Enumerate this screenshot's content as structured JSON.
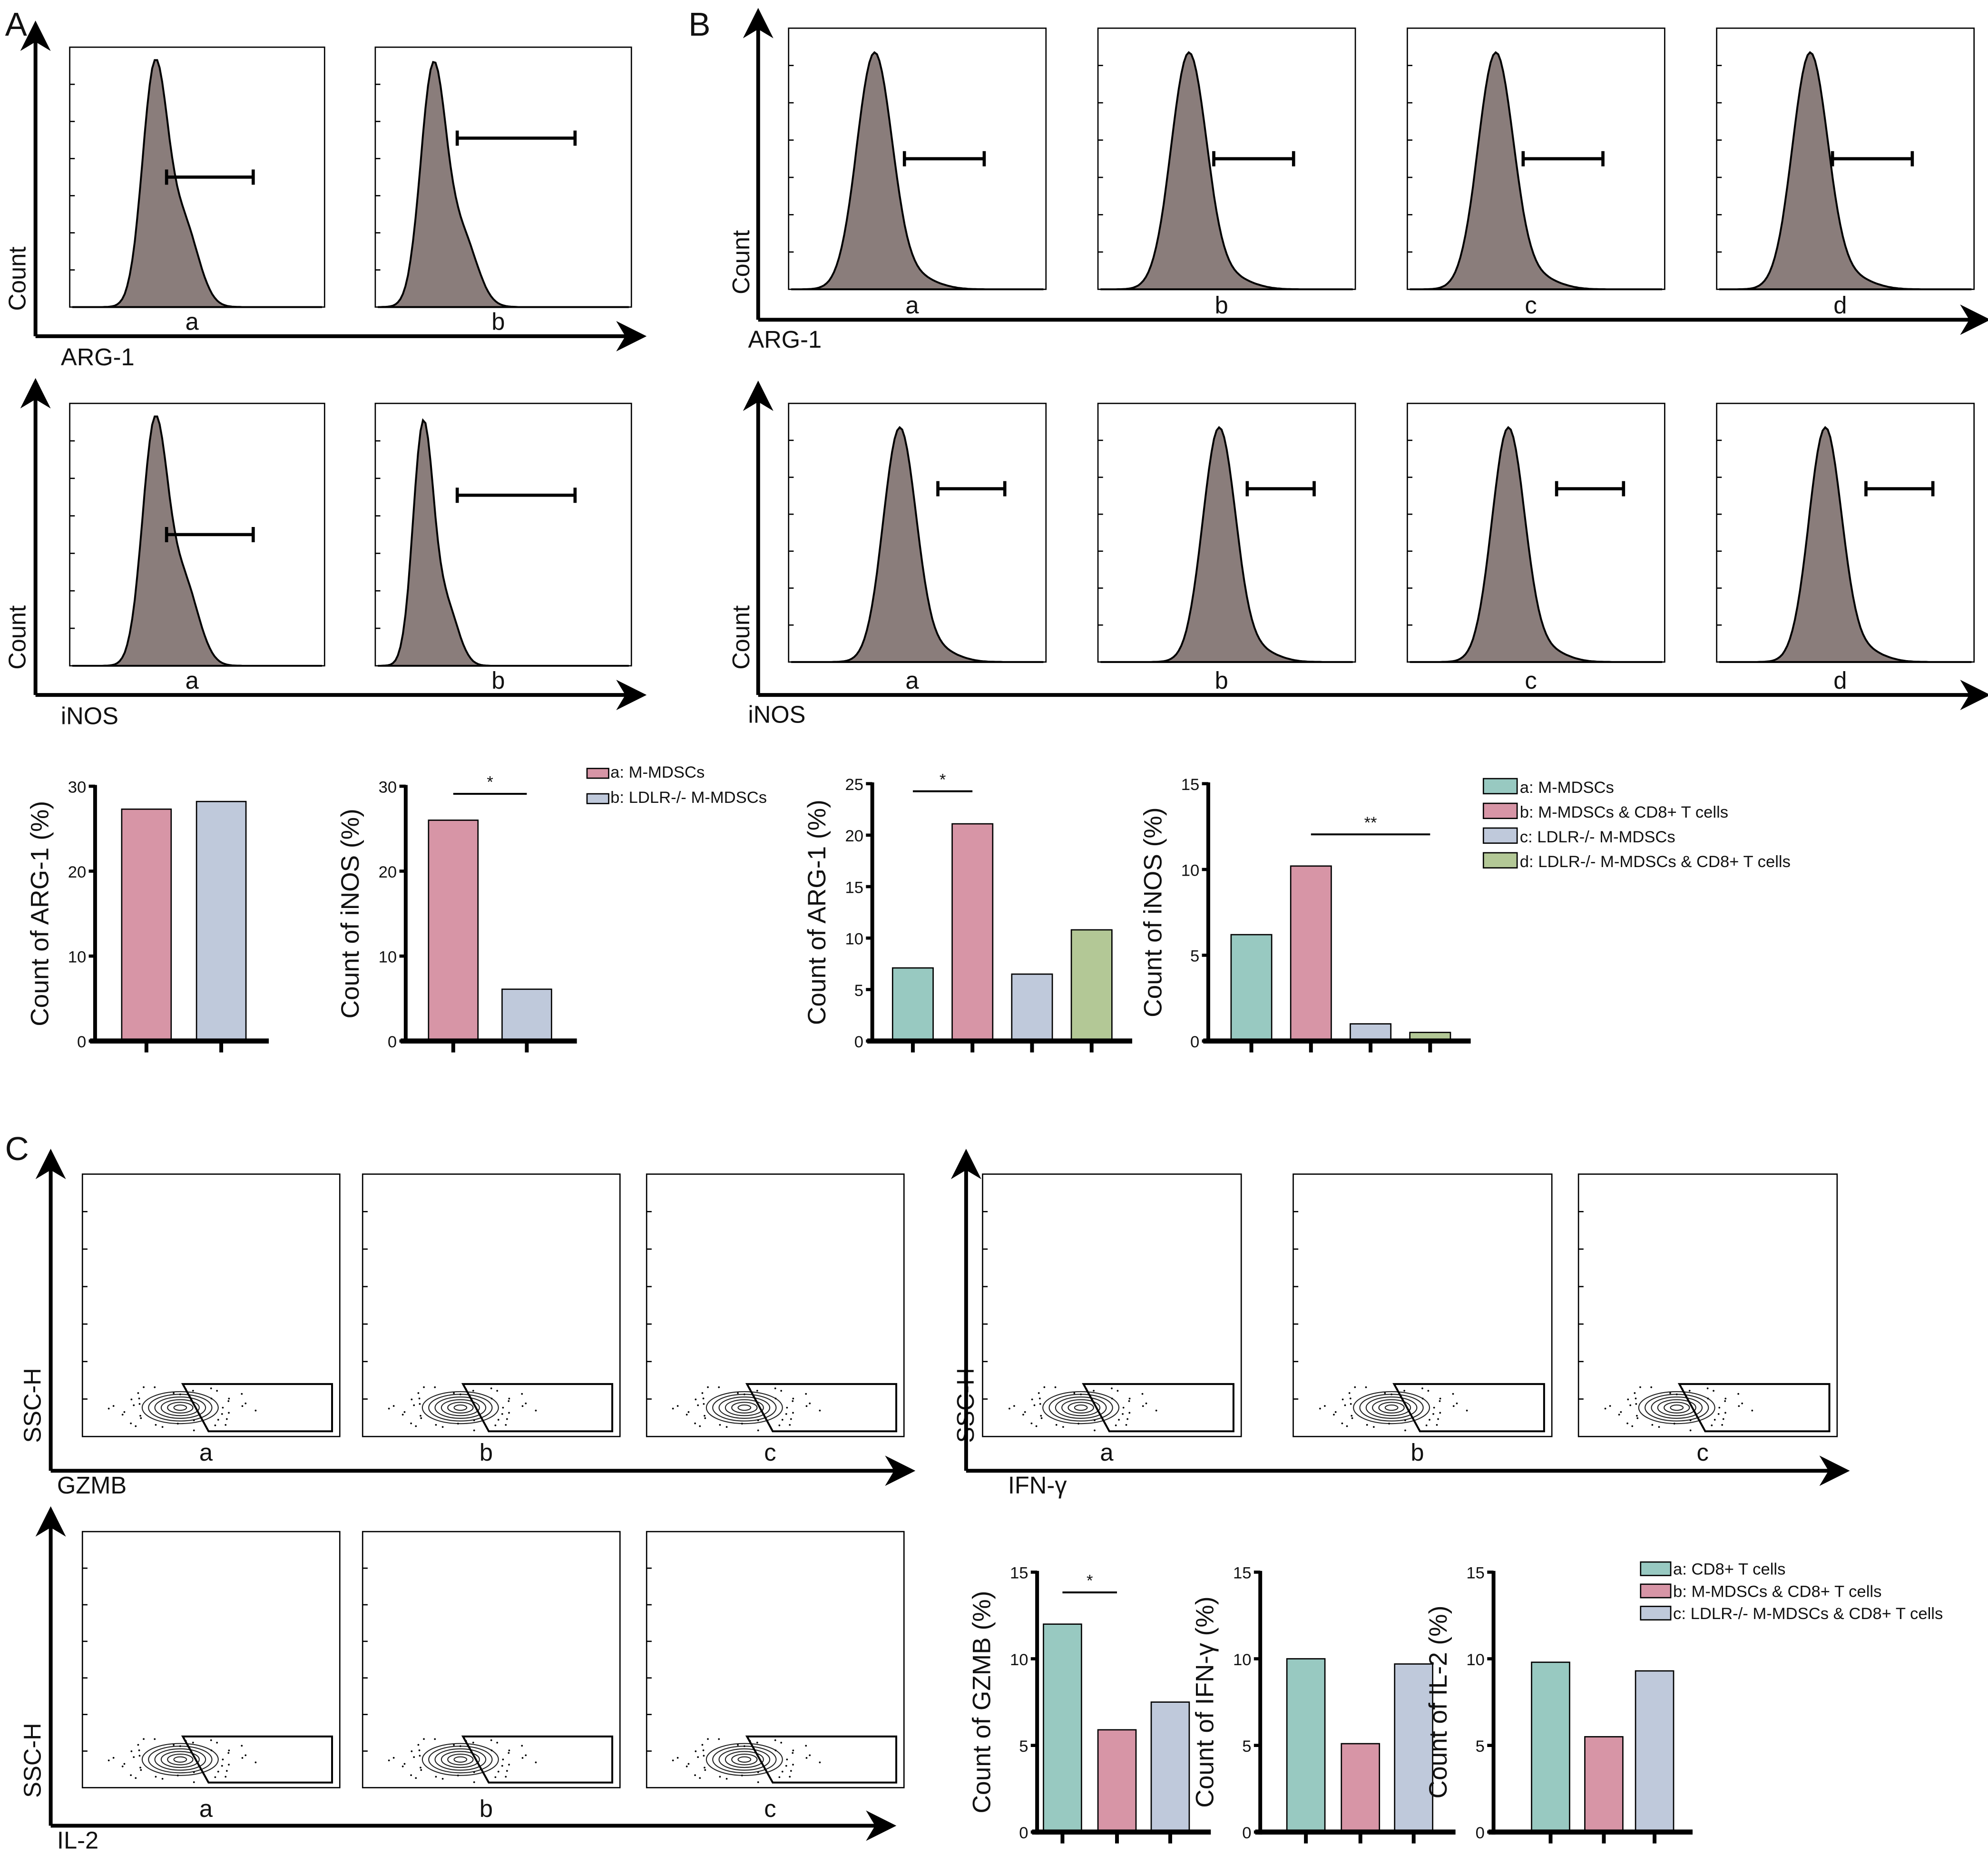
{
  "panels": {
    "A": {
      "letter": "A",
      "y_label": "Count",
      "row1_marker": "ARG-1",
      "row2_marker": "iNOS",
      "sample_labels": [
        "a",
        "b"
      ]
    },
    "B": {
      "letter": "B",
      "y_label": "Count",
      "row1_marker": "ARG-1",
      "row2_marker": "iNOS",
      "sample_labels": [
        "a",
        "b",
        "c",
        "d"
      ]
    },
    "C": {
      "letter": "C",
      "y_label": "SSC-H",
      "gzmb_marker": "GZMB",
      "ifn_marker": "IFN-γ",
      "il2_marker": "IL-2",
      "sample_labels": [
        "a",
        "b",
        "c"
      ]
    }
  },
  "colors": {
    "teal": "#98c9c1",
    "pink": "#d795a6",
    "blue": "#bfc9db",
    "green": "#b3c896",
    "histogram_fill": "#8a7d7b"
  },
  "chart_data": [
    {
      "type": "bar",
      "id": "A-arg1",
      "ylabel": "Count of  ARG-1 (%)",
      "ylim": [
        0,
        30
      ],
      "yticks": [
        0,
        10,
        20,
        30
      ],
      "categories": [
        "a",
        "b"
      ],
      "values": [
        27.3,
        28.2
      ],
      "colors": [
        "#d795a6",
        "#bfc9db"
      ],
      "significance": []
    },
    {
      "type": "bar",
      "id": "A-inos",
      "ylabel": "Count of iNOS (%)",
      "ylim": [
        0,
        30
      ],
      "yticks": [
        0,
        10,
        20,
        30
      ],
      "categories": [
        "a",
        "b"
      ],
      "values": [
        26.0,
        6.1
      ],
      "colors": [
        "#d795a6",
        "#bfc9db"
      ],
      "significance": [
        {
          "from": "a",
          "to": "b",
          "label": "*"
        }
      ]
    },
    {
      "type": "bar",
      "id": "B-arg1",
      "ylabel": "Count of ARG-1 (%)",
      "ylim": [
        0,
        25
      ],
      "yticks": [
        0,
        5,
        10,
        15,
        20,
        25
      ],
      "categories": [
        "a",
        "b",
        "c",
        "d"
      ],
      "values": [
        7.1,
        21.1,
        6.5,
        10.8
      ],
      "colors": [
        "#98c9c1",
        "#d795a6",
        "#bfc9db",
        "#b3c896"
      ],
      "significance": [
        {
          "from": "a",
          "to": "b",
          "label": "*"
        }
      ]
    },
    {
      "type": "bar",
      "id": "B-inos",
      "ylabel": "Count of iNOS (%)",
      "ylim": [
        0,
        15
      ],
      "yticks": [
        0,
        5,
        10,
        15
      ],
      "categories": [
        "a",
        "b",
        "c",
        "d"
      ],
      "values": [
        6.2,
        10.2,
        1.0,
        0.5
      ],
      "colors": [
        "#98c9c1",
        "#d795a6",
        "#bfc9db",
        "#b3c896"
      ],
      "significance": [
        {
          "from": "b",
          "to": "d",
          "label": "**"
        }
      ]
    },
    {
      "type": "bar",
      "id": "C-gzmb",
      "ylabel": "Count of GZMB (%)",
      "ylim": [
        0,
        15
      ],
      "yticks": [
        0,
        5,
        10,
        15
      ],
      "categories": [
        "a",
        "b",
        "c"
      ],
      "values": [
        12.0,
        5.9,
        7.5
      ],
      "colors": [
        "#98c9c1",
        "#d795a6",
        "#bfc9db"
      ],
      "significance": [
        {
          "from": "a",
          "to": "b",
          "label": "*"
        }
      ]
    },
    {
      "type": "bar",
      "id": "C-ifng",
      "ylabel": "Count of IFN-γ (%)",
      "ylim": [
        0,
        15
      ],
      "yticks": [
        0,
        5,
        10,
        15
      ],
      "categories": [
        "a",
        "b",
        "c"
      ],
      "values": [
        10.0,
        5.1,
        9.7
      ],
      "colors": [
        "#98c9c1",
        "#d795a6",
        "#bfc9db"
      ],
      "significance": []
    },
    {
      "type": "bar",
      "id": "C-il2",
      "ylabel": "Count of IL-2 (%)",
      "ylim": [
        0,
        15
      ],
      "yticks": [
        0,
        5,
        10,
        15
      ],
      "categories": [
        "a",
        "b",
        "c"
      ],
      "values": [
        9.8,
        5.5,
        9.3
      ],
      "colors": [
        "#98c9c1",
        "#d795a6",
        "#bfc9db"
      ],
      "significance": []
    }
  ],
  "legends": {
    "A": [
      {
        "label": "a: M-MDSCs",
        "color": "#d795a6"
      },
      {
        "label": "b: LDLR-/- M-MDSCs",
        "color": "#bfc9db"
      }
    ],
    "B": [
      {
        "label": "a: M-MDSCs",
        "color": "#98c9c1"
      },
      {
        "label": "b: M-MDSCs & CD8+ T cells",
        "color": "#d795a6"
      },
      {
        "label": "c: LDLR-/- M-MDSCs",
        "color": "#bfc9db"
      },
      {
        "label": "d: LDLR-/- M-MDSCs & CD8+ T cells",
        "color": "#b3c896"
      }
    ],
    "C": [
      {
        "label": "a: CD8+ T cells",
        "color": "#98c9c1"
      },
      {
        "label": "b: M-MDSCs & CD8+ T cells",
        "color": "#d795a6"
      },
      {
        "label": "c: LDLR-/- M-MDSCs & CD8+ T cells",
        "color": "#bfc9db"
      }
    ]
  }
}
